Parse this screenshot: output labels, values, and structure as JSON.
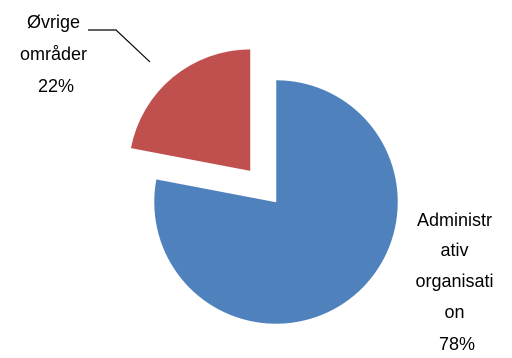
{
  "chart_data": {
    "type": "pie",
    "title": "",
    "slices": [
      {
        "label_lines": [
          "Administr",
          "ativ",
          "organisati",
          "on"
        ],
        "value": 78,
        "value_label": "78%",
        "color": "#4F81BD",
        "exploded": false
      },
      {
        "label_lines": [
          "Øvrige",
          "områder"
        ],
        "value": 22,
        "value_label": "22%",
        "color": "#C0504D",
        "exploded": true
      }
    ],
    "legend": "none",
    "data_labels": "outside"
  }
}
